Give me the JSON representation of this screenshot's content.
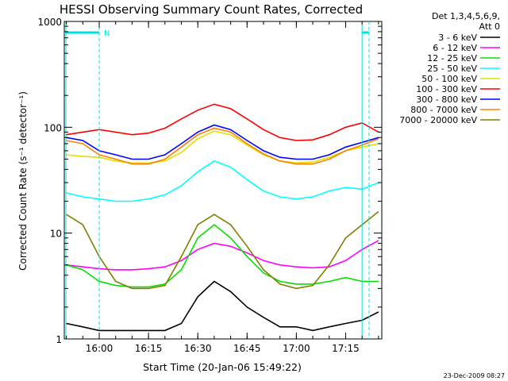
{
  "chart_data": {
    "type": "line",
    "title": "HESSI Observing Summary Count Rates, Corrected",
    "xlabel": "Start Time (20-Jan-06 15:49:22)",
    "ylabel": "Corrected Count Rate (s⁻¹ detector⁻¹)",
    "yscale": "log",
    "ylim": [
      1,
      1000
    ],
    "xlim": [
      "15:49:22",
      "17:26:00"
    ],
    "x_ticks": [
      "16:00",
      "16:15",
      "16:30",
      "16:45",
      "17:00",
      "17:15"
    ],
    "y_ticks": [
      "1",
      "10",
      "100",
      "1000"
    ],
    "grid": false,
    "legend_position": "right",
    "legend_header": [
      "Det 1,3,4,5,6,9,",
      "Att 0"
    ],
    "footer_date": "23-Dec-2009 08:27",
    "markers": {
      "night_end": "16:00",
      "night_start": "17:20",
      "saa_label": "N",
      "bar_color": "#00e0e0"
    },
    "x": [
      "15:50",
      "15:55",
      "16:00",
      "16:05",
      "16:10",
      "16:15",
      "16:20",
      "16:25",
      "16:30",
      "16:35",
      "16:40",
      "16:45",
      "16:50",
      "16:55",
      "17:00",
      "17:05",
      "17:10",
      "17:15",
      "17:20",
      "17:25"
    ],
    "series": [
      {
        "name": "3 - 6 keV",
        "color": "#000000",
        "values": [
          1.4,
          1.3,
          1.2,
          1.2,
          1.2,
          1.2,
          1.2,
          1.4,
          2.5,
          3.5,
          2.8,
          2.0,
          1.6,
          1.3,
          1.3,
          1.2,
          1.3,
          1.4,
          1.5,
          1.8
        ]
      },
      {
        "name": "6 - 12 keV",
        "color": "#ff00ff",
        "values": [
          5.0,
          4.8,
          4.6,
          4.5,
          4.5,
          4.6,
          4.8,
          5.5,
          7.0,
          8.0,
          7.5,
          6.5,
          5.5,
          5.0,
          4.8,
          4.7,
          4.8,
          5.5,
          7.0,
          8.5
        ]
      },
      {
        "name": "12 - 25 keV",
        "color": "#00e000",
        "values": [
          5.0,
          4.5,
          3.5,
          3.2,
          3.1,
          3.1,
          3.3,
          4.5,
          9.0,
          12.0,
          9.0,
          6.0,
          4.2,
          3.5,
          3.3,
          3.3,
          3.5,
          3.8,
          3.5,
          3.5
        ]
      },
      {
        "name": "25 - 50 keV",
        "color": "#00ffff",
        "values": [
          24,
          22,
          21,
          20,
          20,
          21,
          23,
          28,
          38,
          48,
          42,
          32,
          25,
          22,
          21,
          22,
          25,
          27,
          26,
          30
        ]
      },
      {
        "name": "50 - 100 keV",
        "color": "#e0e000",
        "values": [
          55,
          53,
          52,
          48,
          46,
          46,
          48,
          58,
          78,
          92,
          85,
          68,
          55,
          48,
          46,
          47,
          52,
          60,
          65,
          70
        ]
      },
      {
        "name": "100 - 300 keV",
        "color": "#ff0000",
        "values": [
          85,
          90,
          95,
          90,
          85,
          88,
          98,
          120,
          145,
          165,
          150,
          120,
          95,
          80,
          75,
          76,
          85,
          100,
          110,
          90
        ]
      },
      {
        "name": "300 - 800 keV",
        "color": "#0000ff",
        "values": [
          80,
          75,
          60,
          55,
          50,
          50,
          55,
          70,
          90,
          105,
          95,
          75,
          60,
          52,
          50,
          50,
          55,
          65,
          72,
          80
        ]
      },
      {
        "name": "800 - 7000 keV",
        "color": "#ff8000",
        "values": [
          75,
          70,
          55,
          50,
          45,
          45,
          50,
          65,
          85,
          98,
          90,
          70,
          56,
          48,
          45,
          45,
          50,
          60,
          68,
          78
        ]
      },
      {
        "name": "7000 - 20000 keV",
        "color": "#808000",
        "values": [
          15,
          12,
          6.0,
          3.5,
          3.0,
          3.0,
          3.2,
          6.0,
          12.0,
          15.0,
          12.0,
          7.5,
          4.5,
          3.3,
          3.0,
          3.2,
          5.0,
          9.0,
          12.0,
          16.0
        ]
      }
    ]
  }
}
